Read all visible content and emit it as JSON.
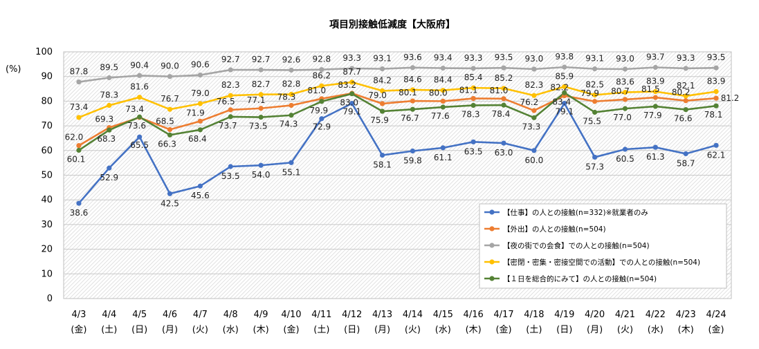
{
  "chart_data": {
    "type": "line",
    "title": "項目別接触低減度【大阪府】",
    "ylabel": "(%)",
    "ylim": [
      0,
      100
    ],
    "yticks": [
      "0",
      "10",
      "20",
      "30",
      "40",
      "50",
      "60",
      "70",
      "80",
      "90",
      "100"
    ],
    "categories": [
      "4/3",
      "4/4",
      "4/5",
      "4/6",
      "4/7",
      "4/8",
      "4/9",
      "4/10",
      "4/11",
      "4/12",
      "4/13",
      "4/14",
      "4/15",
      "4/16",
      "4/17",
      "4/18",
      "4/19",
      "4/20",
      "4/21",
      "4/22",
      "4/23",
      "4/24"
    ],
    "weekdays": [
      "(金)",
      "(土)",
      "(日)",
      "(月)",
      "(火)",
      "(水)",
      "(木)",
      "(金)",
      "(土)",
      "(日)",
      "(月)",
      "(火)",
      "(水)",
      "(木)",
      "(金)",
      "(土)",
      "(日)",
      "(月)",
      "(火)",
      "(水)",
      "(木)",
      "(金)"
    ],
    "series": [
      {
        "name": "【仕事】の人との接触(n=332)※就業者のみ",
        "color": "#4472c4",
        "values": [
          38.6,
          52.9,
          65.5,
          42.5,
          45.6,
          53.5,
          54.0,
          55.1,
          72.9,
          79.1,
          58.1,
          59.8,
          61.1,
          63.5,
          63.0,
          60.0,
          79.1,
          57.3,
          60.5,
          61.3,
          58.7,
          62.1
        ]
      },
      {
        "name": "【外出】の人との接触(n=504)",
        "color": "#ed7d31",
        "values": [
          62.0,
          69.3,
          73.4,
          68.5,
          71.9,
          76.5,
          77.1,
          78.3,
          81.0,
          83.2,
          79.0,
          80.1,
          80.0,
          81.1,
          81.0,
          76.2,
          82.2,
          79.9,
          80.7,
          81.5,
          80.2,
          81.2
        ]
      },
      {
        "name": "【夜の街での会食】での人との接触(n=504)",
        "color": "#a5a5a5",
        "values": [
          87.8,
          89.5,
          90.4,
          90.0,
          90.6,
          92.7,
          92.7,
          92.6,
          92.8,
          93.3,
          93.1,
          93.6,
          93.4,
          93.3,
          93.5,
          93.0,
          93.8,
          93.1,
          93.0,
          93.7,
          93.3,
          93.5
        ]
      },
      {
        "name": "【密閉・密集・密接空間での活動】での人との接触(n=504)",
        "color": "#ffc000",
        "values": [
          73.4,
          78.3,
          81.6,
          76.7,
          79.0,
          82.3,
          82.7,
          82.8,
          86.2,
          87.7,
          84.2,
          84.6,
          84.4,
          85.4,
          85.2,
          82.3,
          85.9,
          82.5,
          83.6,
          83.9,
          82.1,
          83.9
        ]
      },
      {
        "name": "【１日を総合的にみて】の人との接触(n=504)",
        "color": "#548235",
        "values": [
          60.1,
          68.3,
          73.6,
          66.3,
          68.4,
          73.7,
          73.5,
          74.3,
          79.9,
          83.0,
          75.9,
          76.7,
          77.6,
          78.3,
          78.4,
          73.3,
          83.4,
          75.5,
          77.0,
          77.9,
          76.6,
          78.1
        ]
      }
    ],
    "labels": [
      [
        "38.6",
        "52.9",
        "65.5",
        "42.5",
        "45.6",
        "53.5",
        "54.0",
        "55.1",
        "72.9",
        "79.1",
        "58.1",
        "59.8",
        "61.1",
        "63.5",
        "63.0",
        "60.0",
        "79.1",
        "57.3",
        "60.5",
        "61.3",
        "58.7",
        "62.1"
      ],
      [
        "62.0",
        "69.3",
        "73.4",
        "68.5",
        "71.9",
        "76.5",
        "77.1",
        "78.3",
        "81.0",
        "83.2",
        "79.0",
        "80.1",
        "80.0",
        "81.1",
        "81.0",
        "76.2",
        "82.2",
        "79.9",
        "80.7",
        "81.5",
        "80.2",
        "81.2"
      ],
      [
        "87.8",
        "89.5",
        "90.4",
        "90.0",
        "90.6",
        "92.7",
        "92.7",
        "92.6",
        "92.8",
        "93.3",
        "93.1",
        "93.6",
        "93.4",
        "93.3",
        "93.5",
        "93.0",
        "93.8",
        "93.1",
        "93.0",
        "93.7",
        "93.3",
        "93.5"
      ],
      [
        "73.4",
        "78.3",
        "81.6",
        "76.7",
        "79.0",
        "82.3",
        "82.7",
        "82.8",
        "86.2",
        "87.7",
        "84.2",
        "84.6",
        "84.4",
        "85.4",
        "85.2",
        "82.3",
        "85.9",
        "82.5",
        "83.6",
        "83.9",
        "82.1",
        "83.9"
      ],
      [
        "60.1",
        "68.3",
        "73.6",
        "66.3",
        "68.4",
        "73.7",
        "73.5",
        "74.3",
        "79.9",
        "83.0",
        "75.9",
        "76.7",
        "77.6",
        "78.3",
        "78.4",
        "73.3",
        "83.4",
        "75.5",
        "77.0",
        "77.9",
        "76.6",
        "78.1"
      ]
    ],
    "legend_position": "bottom-right",
    "grid": true
  }
}
